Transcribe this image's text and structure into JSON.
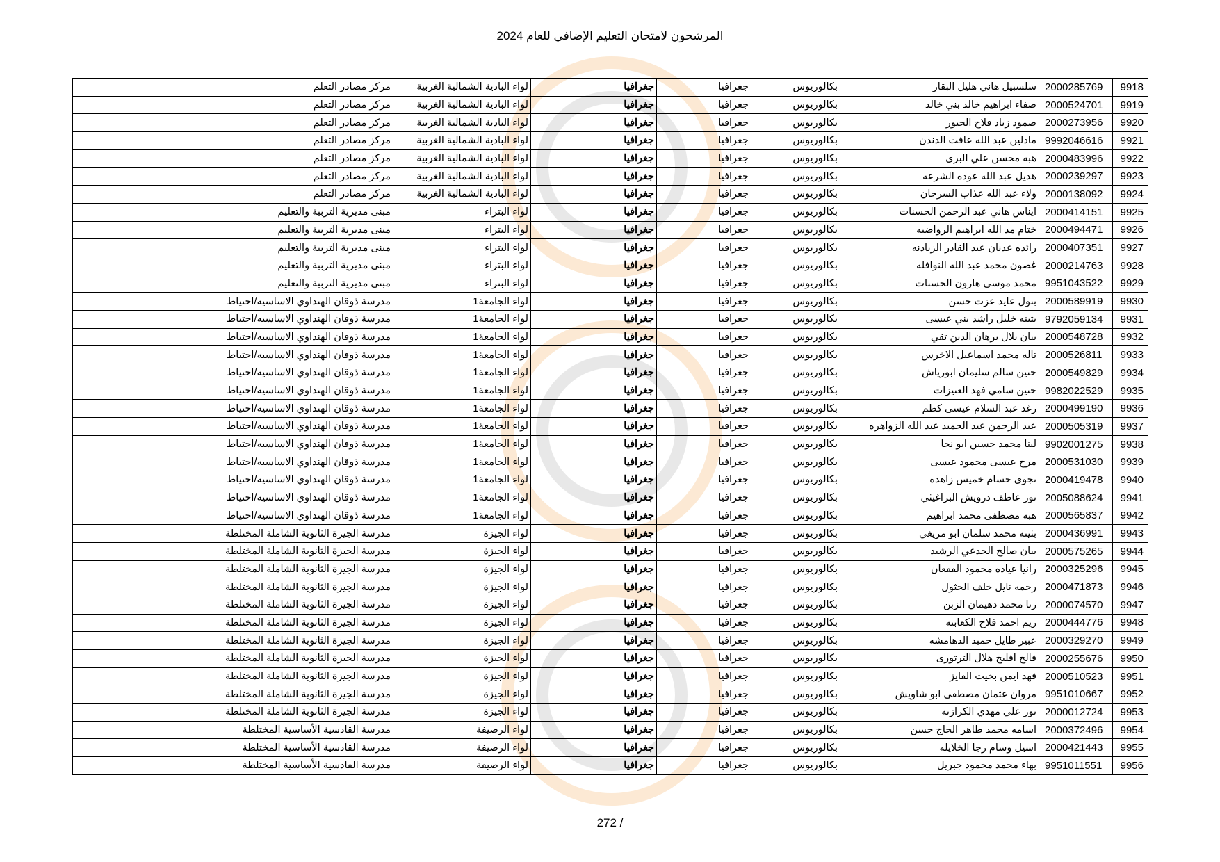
{
  "title": "المرشحون لامتحان التعليم الإضافي للعام 2024",
  "page_number": "272 /",
  "rows": [
    {
      "num": "9918",
      "id": "2000285769",
      "name": "سلسبيل هاني هليل البقار",
      "degree": "بكالوريوس",
      "major": "جغرافيا",
      "subject": "جغرافيا",
      "district": "لواء البادية الشمالية الغربية",
      "center": "مركز مصادر التعلم"
    },
    {
      "num": "9919",
      "id": "2000524701",
      "name": "صفاء ابراهيم خالد بني خالد",
      "degree": "بكالوريوس",
      "major": "جغرافيا",
      "subject": "جغرافيا",
      "district": "لواء البادية الشمالية الغربية",
      "center": "مركز مصادر التعلم"
    },
    {
      "num": "9920",
      "id": "2000273956",
      "name": "صمود زياد فلاح الجبور",
      "degree": "بكالوريوس",
      "major": "جغرافيا",
      "subject": "جغرافيا",
      "district": "لواء البادية الشمالية الغربية",
      "center": "مركز مصادر التعلم"
    },
    {
      "num": "9921",
      "id": "9992046616",
      "name": "مادلين عبد الله عافت الدندن",
      "degree": "بكالوريوس",
      "major": "جغرافيا",
      "subject": "جغرافيا",
      "district": "لواء البادية الشمالية الغربية",
      "center": "مركز مصادر التعلم"
    },
    {
      "num": "9922",
      "id": "2000483996",
      "name": "هبه محسن علي البرى",
      "degree": "بكالوريوس",
      "major": "جغرافيا",
      "subject": "جغرافيا",
      "district": "لواء البادية الشمالية الغربية",
      "center": "مركز مصادر التعلم"
    },
    {
      "num": "9923",
      "id": "2000239297",
      "name": "هديل عبد الله عوده الشرعه",
      "degree": "بكالوريوس",
      "major": "جغرافيا",
      "subject": "جغرافيا",
      "district": "لواء البادية الشمالية الغربية",
      "center": "مركز مصادر التعلم"
    },
    {
      "num": "9924",
      "id": "2000138092",
      "name": "ولاء عبد الله عذاب السرحان",
      "degree": "بكالوريوس",
      "major": "جغرافيا",
      "subject": "جغرافيا",
      "district": "لواء البادية الشمالية الغربية",
      "center": "مركز مصادر التعلم"
    },
    {
      "num": "9925",
      "id": "2000414151",
      "name": "ايناس هاني عبد الرحمن الحسنات",
      "degree": "بكالوريوس",
      "major": "جغرافيا",
      "subject": "جغرافيا",
      "district": "لواء البتراء",
      "center": "مبنى مديرية التربية والتعليم"
    },
    {
      "num": "9926",
      "id": "2000494471",
      "name": "ختام مد الله ابراهيم الرواضيه",
      "degree": "بكالوريوس",
      "major": "جغرافيا",
      "subject": "جغرافيا",
      "district": "لواء البتراء",
      "center": "مبنى مديرية التربية والتعليم"
    },
    {
      "num": "9927",
      "id": "2000407351",
      "name": "رائده عدنان عبد القادر الزيادنه",
      "degree": "بكالوريوس",
      "major": "جغرافيا",
      "subject": "جغرافيا",
      "district": "لواء البتراء",
      "center": "مبنى مديرية التربية والتعليم"
    },
    {
      "num": "9928",
      "id": "2000214763",
      "name": "غصون محمد عبد الله النوافله",
      "degree": "بكالوريوس",
      "major": "جغرافيا",
      "subject": "جغرافيا",
      "district": "لواء البتراء",
      "center": "مبنى مديرية التربية والتعليم"
    },
    {
      "num": "9929",
      "id": "9951043522",
      "name": "محمد موسى هارون الحسنات",
      "degree": "بكالوريوس",
      "major": "جغرافيا",
      "subject": "جغرافيا",
      "district": "لواء البتراء",
      "center": "مبنى مديرية التربية والتعليم"
    },
    {
      "num": "9930",
      "id": "2000589919",
      "name": "بتول عايد عزت حسن",
      "degree": "بكالوريوس",
      "major": "جغرافيا",
      "subject": "جغرافيا",
      "district": "لواء الجامعة1",
      "center": "مدرسة ذوقان  الهنداوي الاساسيه/احتياط"
    },
    {
      "num": "9931",
      "id": "9792059134",
      "name": "بثينه خليل راشد بني عيسى",
      "degree": "بكالوريوس",
      "major": "جغرافيا",
      "subject": "جغرافيا",
      "district": "لواء الجامعة1",
      "center": "مدرسة ذوقان  الهنداوي الاساسيه/احتياط"
    },
    {
      "num": "9932",
      "id": "2000548728",
      "name": "بيان بلال برهان الدين تقي",
      "degree": "بكالوريوس",
      "major": "جغرافيا",
      "subject": "جغرافيا",
      "district": "لواء الجامعة1",
      "center": "مدرسة ذوقان  الهنداوي الاساسيه/احتياط"
    },
    {
      "num": "9933",
      "id": "2000526811",
      "name": "تاله محمد اسماعيل الاخرس",
      "degree": "بكالوريوس",
      "major": "جغرافيا",
      "subject": "جغرافيا",
      "district": "لواء الجامعة1",
      "center": "مدرسة ذوقان  الهنداوي الاساسيه/احتياط"
    },
    {
      "num": "9934",
      "id": "2000549829",
      "name": "حنين سالم سليمان ابورياش",
      "degree": "بكالوريوس",
      "major": "جغرافيا",
      "subject": "جغرافيا",
      "district": "لواء الجامعة1",
      "center": "مدرسة ذوقان  الهنداوي الاساسيه/احتياط"
    },
    {
      "num": "9935",
      "id": "9982022529",
      "name": "حنين سامي فهد العنيزات",
      "degree": "بكالوريوس",
      "major": "جغرافيا",
      "subject": "جغرافيا",
      "district": "لواء الجامعة1",
      "center": "مدرسة ذوقان  الهنداوي الاساسيه/احتياط"
    },
    {
      "num": "9936",
      "id": "2000499190",
      "name": "رغد عبد السلام عيسى كظم",
      "degree": "بكالوريوس",
      "major": "جغرافيا",
      "subject": "جغرافيا",
      "district": "لواء الجامعة1",
      "center": "مدرسة ذوقان  الهنداوي الاساسيه/احتياط"
    },
    {
      "num": "9937",
      "id": "2000505319",
      "name": "عبد الرحمن عبد الحميد عبد الله الزواهره",
      "degree": "بكالوريوس",
      "major": "جغرافيا",
      "subject": "جغرافيا",
      "district": "لواء الجامعة1",
      "center": "مدرسة ذوقان  الهنداوي الاساسيه/احتياط"
    },
    {
      "num": "9938",
      "id": "9902001275",
      "name": "لينا محمد حسين ابو نجا",
      "degree": "بكالوريوس",
      "major": "جغرافيا",
      "subject": "جغرافيا",
      "district": "لواء الجامعة1",
      "center": "مدرسة ذوقان  الهنداوي الاساسيه/احتياط"
    },
    {
      "num": "9939",
      "id": "2000531030",
      "name": "مرح عيسى محمود عيسى",
      "degree": "بكالوريوس",
      "major": "جغرافيا",
      "subject": "جغرافيا",
      "district": "لواء الجامعة1",
      "center": "مدرسة ذوقان  الهنداوي الاساسيه/احتياط"
    },
    {
      "num": "9940",
      "id": "2000419478",
      "name": "نجوى حسام خميس زاهده",
      "degree": "بكالوريوس",
      "major": "جغرافيا",
      "subject": "جغرافيا",
      "district": "لواء الجامعة1",
      "center": "مدرسة ذوقان  الهنداوي الاساسيه/احتياط"
    },
    {
      "num": "9941",
      "id": "2005088624",
      "name": "نور عاطف درويش البراغيثي",
      "degree": "بكالوريوس",
      "major": "جغرافيا",
      "subject": "جغرافيا",
      "district": "لواء الجامعة1",
      "center": "مدرسة ذوقان  الهنداوي الاساسيه/احتياط"
    },
    {
      "num": "9942",
      "id": "2000565837",
      "name": "هبه مصطفى محمد ابراهيم",
      "degree": "بكالوريوس",
      "major": "جغرافيا",
      "subject": "جغرافيا",
      "district": "لواء الجامعة1",
      "center": "مدرسة ذوقان  الهنداوي الاساسيه/احتياط"
    },
    {
      "num": "9943",
      "id": "2000436991",
      "name": "بثينه محمد سلمان ابو مريغي",
      "degree": "بكالوريوس",
      "major": "جغرافيا",
      "subject": "جغرافيا",
      "district": "لواء الجيزة",
      "center": "مدرسة الجيزة الثانوية الشاملة المختلطة"
    },
    {
      "num": "9944",
      "id": "2000575265",
      "name": "بيان صالح الجدعي الرشيد",
      "degree": "بكالوريوس",
      "major": "جغرافيا",
      "subject": "جغرافيا",
      "district": "لواء الجيزة",
      "center": "مدرسة الجيزة الثانوية الشاملة المختلطة"
    },
    {
      "num": "9945",
      "id": "2000325296",
      "name": "رانيا عياده محمود القفعان",
      "degree": "بكالوريوس",
      "major": "جغرافيا",
      "subject": "جغرافيا",
      "district": "لواء الجيزة",
      "center": "مدرسة الجيزة الثانوية الشاملة المختلطة"
    },
    {
      "num": "9946",
      "id": "2000471873",
      "name": "رحمه نايل خلف الحثول",
      "degree": "بكالوريوس",
      "major": "جغرافيا",
      "subject": "جغرافيا",
      "district": "لواء الجيزة",
      "center": "مدرسة الجيزة الثانوية الشاملة المختلطة"
    },
    {
      "num": "9947",
      "id": "2000074570",
      "name": "رنا محمد دهيمان الزبن",
      "degree": "بكالوريوس",
      "major": "جغرافيا",
      "subject": "جغرافيا",
      "district": "لواء الجيزة",
      "center": "مدرسة الجيزة الثانوية الشاملة المختلطة"
    },
    {
      "num": "9948",
      "id": "2000444776",
      "name": "ريم احمد فلاح الكعابنه",
      "degree": "بكالوريوس",
      "major": "جغرافيا",
      "subject": "جغرافيا",
      "district": "لواء الجيزة",
      "center": "مدرسة الجيزة الثانوية الشاملة المختلطة"
    },
    {
      "num": "9949",
      "id": "2000329270",
      "name": "عبير طايل حميد الدهامشه",
      "degree": "بكالوريوس",
      "major": "جغرافيا",
      "subject": "جغرافيا",
      "district": "لواء الجيزة",
      "center": "مدرسة الجيزة الثانوية الشاملة المختلطة"
    },
    {
      "num": "9950",
      "id": "2000255676",
      "name": "فالح افليح هلال الترتورى",
      "degree": "بكالوريوس",
      "major": "جغرافيا",
      "subject": "جغرافيا",
      "district": "لواء الجيزة",
      "center": "مدرسة الجيزة الثانوية الشاملة المختلطة"
    },
    {
      "num": "9951",
      "id": "2000510523",
      "name": "فهد ايمن بخيت الفايز",
      "degree": "بكالوريوس",
      "major": "جغرافيا",
      "subject": "جغرافيا",
      "district": "لواء الجيزة",
      "center": "مدرسة الجيزة الثانوية الشاملة المختلطة"
    },
    {
      "num": "9952",
      "id": "9951010667",
      "name": "مروان عثمان مصطفى ابو شاويش",
      "degree": "بكالوريوس",
      "major": "جغرافيا",
      "subject": "جغرافيا",
      "district": "لواء الجيزة",
      "center": "مدرسة الجيزة الثانوية الشاملة المختلطة"
    },
    {
      "num": "9953",
      "id": "2000012724",
      "name": "نور علي مهدي الكرازنه",
      "degree": "بكالوريوس",
      "major": "جغرافيا",
      "subject": "جغرافيا",
      "district": "لواء الجيزة",
      "center": "مدرسة الجيزة الثانوية الشاملة المختلطة"
    },
    {
      "num": "9954",
      "id": "2000372496",
      "name": "اسامه محمد طاهر الحاج حسن",
      "degree": "بكالوريوس",
      "major": "جغرافيا",
      "subject": "جغرافيا",
      "district": "لواء الرصيفة",
      "center": "مدرسة القادسية الأساسية المختلطة"
    },
    {
      "num": "9955",
      "id": "2000421443",
      "name": "اسيل وسام رجا الخلايله",
      "degree": "بكالوريوس",
      "major": "جغرافيا",
      "subject": "جغرافيا",
      "district": "لواء الرصيفة",
      "center": "مدرسة القادسية الأساسية المختلطة"
    },
    {
      "num": "9956",
      "id": "9951011551",
      "name": "بهاء محمد محمود جبريل",
      "degree": "بكالوريوس",
      "major": "جغرافيا",
      "subject": "جغرافيا",
      "district": "لواء الرصيفة",
      "center": "مدرسة القادسية الأساسية المختلطة"
    }
  ]
}
